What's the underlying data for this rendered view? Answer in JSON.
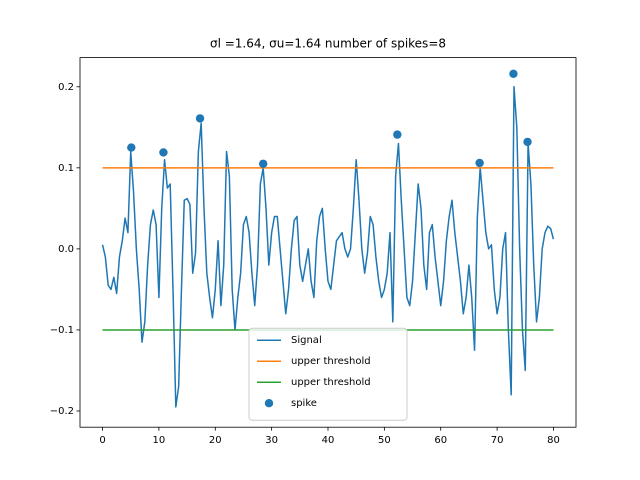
{
  "chart_data": {
    "type": "line",
    "title": "σl =1.64, σu=1.64 number of spikes=8",
    "xlim": [
      -4,
      84
    ],
    "ylim": [
      -0.22,
      0.236
    ],
    "xticks": [
      0,
      10,
      20,
      30,
      40,
      50,
      60,
      70,
      80
    ],
    "yticks": [
      {
        "value": -0.2,
        "label": "−0.2"
      },
      {
        "value": -0.1,
        "label": "−0.1"
      },
      {
        "value": 0,
        "label": "0.0"
      },
      0.1,
      0.2
    ],
    "legend": "lower center",
    "series": [
      {
        "name": "Signal",
        "type": "line",
        "color": "#1f77b4",
        "x": [
          0,
          0.5,
          1,
          1.5,
          2,
          2.5,
          3,
          3.5,
          4,
          4.5,
          5,
          5.5,
          6,
          6.5,
          7,
          7.5,
          8,
          8.5,
          9,
          9.5,
          10,
          10.5,
          11,
          11.5,
          12,
          12.5,
          13,
          13.5,
          14,
          14.5,
          15,
          15.5,
          16,
          16.5,
          17,
          17.5,
          18,
          18.5,
          19,
          19.5,
          20,
          20.5,
          21,
          21.5,
          22,
          22.5,
          23,
          23.5,
          24,
          24.5,
          25,
          25.5,
          26,
          26.5,
          27,
          27.5,
          28,
          28.5,
          29,
          29.5,
          30,
          30.5,
          31,
          31.5,
          32,
          32.5,
          33,
          33.5,
          34,
          34.5,
          35,
          35.5,
          36,
          36.5,
          37,
          37.5,
          38,
          38.5,
          39,
          39.5,
          40,
          40.5,
          41,
          41.5,
          42,
          42.5,
          43,
          43.5,
          44,
          44.5,
          45,
          45.5,
          46,
          46.5,
          47,
          47.5,
          48,
          48.5,
          49,
          49.5,
          50,
          50.5,
          51,
          51.5,
          52,
          52.5,
          53,
          53.5,
          54,
          54.5,
          55,
          55.5,
          56,
          56.5,
          57,
          57.5,
          58,
          58.5,
          59,
          59.5,
          60,
          60.5,
          61,
          61.5,
          62,
          62.5,
          63,
          63.5,
          64,
          64.5,
          65,
          65.5,
          66,
          66.5,
          67,
          67.5,
          68,
          68.5,
          69,
          69.5,
          70,
          70.5,
          71,
          71.5,
          72,
          72.5,
          73,
          73.5,
          74,
          74.5,
          75,
          75.5,
          76,
          76.5,
          77,
          77.5,
          78,
          78.5,
          79,
          79.5,
          80
        ],
        "values": [
          0.005,
          -0.01,
          -0.045,
          -0.05,
          -0.035,
          -0.055,
          -0.01,
          0.01,
          0.038,
          0.02,
          0.12,
          0.07,
          0.0,
          -0.05,
          -0.115,
          -0.09,
          -0.02,
          0.03,
          0.048,
          0.03,
          -0.06,
          0.05,
          0.11,
          0.075,
          0.08,
          -0.05,
          -0.195,
          -0.17,
          -0.05,
          0.06,
          0.062,
          0.055,
          -0.03,
          -0.005,
          0.12,
          0.155,
          0.05,
          -0.03,
          -0.06,
          -0.085,
          -0.05,
          0.01,
          -0.07,
          -0.02,
          0.12,
          0.09,
          -0.05,
          -0.1,
          -0.06,
          -0.03,
          0.03,
          0.04,
          0.02,
          -0.03,
          -0.07,
          -0.02,
          0.08,
          0.1,
          0.05,
          -0.02,
          0.02,
          0.04,
          0.04,
          0.0,
          -0.04,
          -0.08,
          -0.05,
          0.0,
          0.035,
          0.04,
          -0.02,
          -0.04,
          -0.02,
          0.0,
          -0.04,
          -0.06,
          0.01,
          0.04,
          0.05,
          0.0,
          -0.04,
          -0.05,
          -0.02,
          0.01,
          0.015,
          0.02,
          0.0,
          -0.01,
          0.0,
          0.05,
          0.11,
          0.06,
          0.0,
          -0.03,
          -0.005,
          0.04,
          0.03,
          -0.01,
          -0.04,
          -0.06,
          -0.05,
          -0.03,
          0.02,
          -0.09,
          0.09,
          0.13,
          0.06,
          0.0,
          -0.06,
          -0.07,
          -0.04,
          0.02,
          0.08,
          0.05,
          -0.02,
          -0.05,
          0.02,
          0.03,
          -0.01,
          -0.04,
          -0.07,
          -0.04,
          0.01,
          0.04,
          0.06,
          0.02,
          -0.01,
          -0.04,
          -0.08,
          -0.06,
          -0.02,
          -0.06,
          -0.125,
          0.04,
          0.1,
          0.06,
          0.02,
          0.0,
          0.005,
          -0.05,
          -0.08,
          -0.06,
          0.0,
          0.02,
          -0.1,
          -0.18,
          0.2,
          0.15,
          0.0,
          -0.1,
          -0.15,
          0.13,
          0.08,
          -0.02,
          -0.09,
          -0.06,
          0.0,
          0.02,
          0.028,
          0.025,
          0.012
        ]
      },
      {
        "name": "upper threshold",
        "type": "line",
        "color": "#ff7f0e",
        "x": [
          0,
          80
        ],
        "values": [
          0.1,
          0.1
        ]
      },
      {
        "name": "upper threshold",
        "type": "line",
        "color": "#2ca02c",
        "x": [
          0,
          80
        ],
        "values": [
          -0.1,
          -0.1
        ]
      },
      {
        "name": "spike",
        "type": "scatter",
        "color": "#1f77b4",
        "x": [
          5.1,
          10.8,
          17.3,
          28.5,
          52.3,
          66.9,
          72.9,
          75.4
        ],
        "values": [
          0.125,
          0.119,
          0.161,
          0.105,
          0.141,
          0.106,
          0.216,
          0.132
        ]
      }
    ]
  }
}
